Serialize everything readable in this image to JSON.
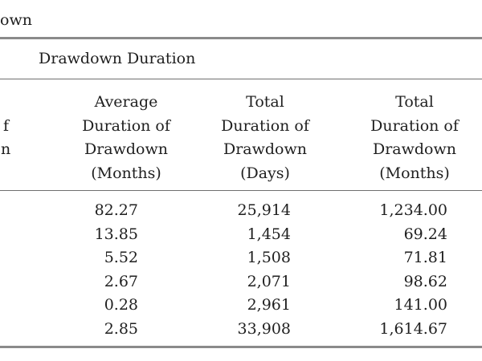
{
  "caption": "own",
  "group_header": "Drawdown Duration",
  "partial_header": [
    "f",
    "n"
  ],
  "columns": [
    {
      "header": [
        "Average",
        "Duration of",
        "Drawdown",
        "(Months)"
      ],
      "values": [
        "82.27",
        "13.85",
        "5.52",
        "2.67",
        "0.28",
        "2.85"
      ]
    },
    {
      "header": [
        "Total",
        "Duration of",
        "Drawdown",
        "(Days)"
      ],
      "values": [
        "25,914",
        "1,454",
        "1,508",
        "2,071",
        "2,961",
        "33,908"
      ]
    },
    {
      "header": [
        "Total",
        "Duration of",
        "Drawdown",
        "(Months)"
      ],
      "values": [
        "1,234.00",
        "69.24",
        "71.81",
        "98.62",
        "141.00",
        "1,614.67"
      ]
    }
  ]
}
